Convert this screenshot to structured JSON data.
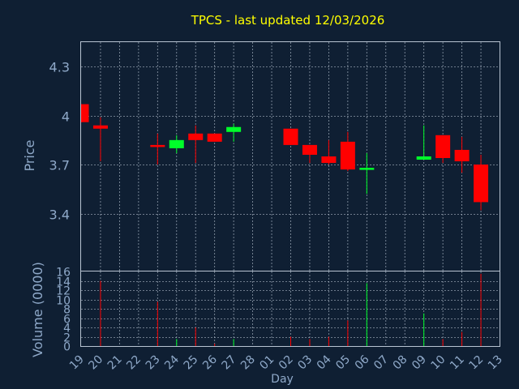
{
  "chart_data": {
    "type": "candlestick",
    "title": "TPCS - last updated 12/03/2026",
    "xlabel": "Day",
    "grid": true,
    "colors": {
      "background": "#0f1f33",
      "up": "#00ff2a",
      "down": "#ff0000",
      "grid": "#b8c4d2",
      "axis_text": "#8fa9c9",
      "title": "#ffff00"
    },
    "x_ticks": [
      "19",
      "20",
      "21",
      "22",
      "23",
      "24",
      "25",
      "26",
      "27",
      "28",
      "01",
      "02",
      "03",
      "04",
      "05",
      "06",
      "07",
      "08",
      "09",
      "10",
      "11",
      "12",
      "13"
    ],
    "price_panel": {
      "ylabel": "Price",
      "ylim": [
        3.05,
        4.45
      ],
      "yticks": [
        "4.3",
        "4",
        "3.7",
        "3.4"
      ],
      "ytick_values": [
        4.3,
        4.0,
        3.7,
        3.4
      ]
    },
    "volume_panel": {
      "ylabel": "Volume (0000)",
      "ylim": [
        0,
        16
      ],
      "yticks": [
        "16",
        "14",
        "12",
        "10",
        "8",
        "6",
        "4",
        "2",
        "0"
      ],
      "ytick_values": [
        16,
        14,
        12,
        10,
        8,
        6,
        4,
        2,
        0
      ]
    },
    "series": [
      {
        "date": "19",
        "open": 4.07,
        "high": 4.07,
        "low": 3.96,
        "close": 3.96,
        "volume": 0
      },
      {
        "date": "20",
        "open": 3.94,
        "high": 3.99,
        "low": 3.72,
        "close": 3.92,
        "volume": 14
      },
      {
        "date": "23",
        "open": 3.82,
        "high": 3.89,
        "low": 3.7,
        "close": 3.81,
        "volume": 9.5
      },
      {
        "date": "24",
        "open": 3.8,
        "high": 3.88,
        "low": 3.77,
        "close": 3.85,
        "volume": 1.5
      },
      {
        "date": "25",
        "open": 3.89,
        "high": 3.94,
        "low": 3.71,
        "close": 3.85,
        "volume": 4
      },
      {
        "date": "26",
        "open": 3.89,
        "high": 3.89,
        "low": 3.84,
        "close": 3.84,
        "volume": 0.5
      },
      {
        "date": "27",
        "open": 3.9,
        "high": 3.95,
        "low": 3.84,
        "close": 3.93,
        "volume": 1.5
      },
      {
        "date": "02",
        "open": 3.92,
        "high": 3.92,
        "low": 3.82,
        "close": 3.82,
        "volume": 2
      },
      {
        "date": "03",
        "open": 3.82,
        "high": 3.82,
        "low": 3.71,
        "close": 3.76,
        "volume": 1.5
      },
      {
        "date": "04",
        "open": 3.75,
        "high": 3.85,
        "low": 3.7,
        "close": 3.71,
        "volume": 2
      },
      {
        "date": "05",
        "open": 3.84,
        "high": 3.9,
        "low": 3.66,
        "close": 3.67,
        "volume": 5.5
      },
      {
        "date": "06",
        "open": 3.67,
        "high": 3.77,
        "low": 3.52,
        "close": 3.68,
        "volume": 13.5
      },
      {
        "date": "09",
        "open": 3.73,
        "high": 3.94,
        "low": 3.73,
        "close": 3.75,
        "volume": 7
      },
      {
        "date": "10",
        "open": 3.88,
        "high": 3.88,
        "low": 3.71,
        "close": 3.74,
        "volume": 1.5
      },
      {
        "date": "11",
        "open": 3.79,
        "high": 3.87,
        "low": 3.65,
        "close": 3.72,
        "volume": 3
      },
      {
        "date": "12",
        "open": 3.7,
        "high": 3.76,
        "low": 3.42,
        "close": 3.47,
        "volume": 15.5
      }
    ]
  }
}
